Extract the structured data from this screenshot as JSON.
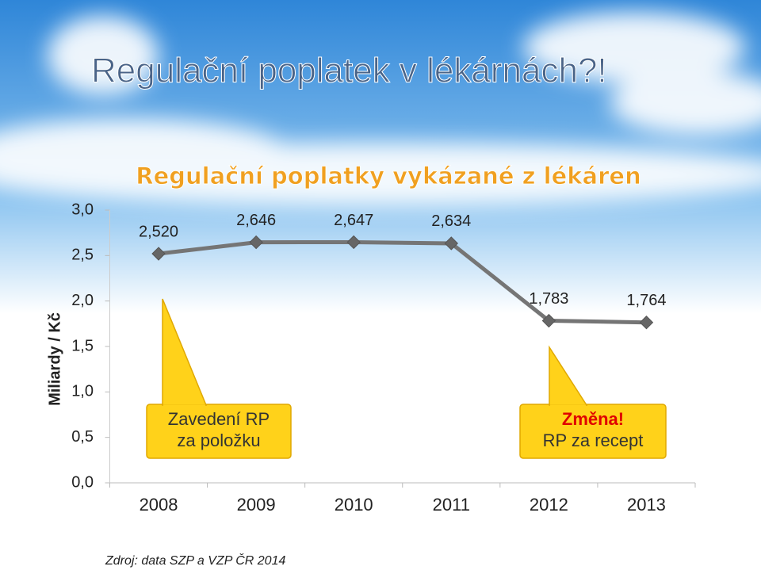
{
  "slide_title": "Regulační poplatek v lékárnách?!",
  "source": "Zdroj: data SZP a VZP ČR 2014",
  "chart_data": {
    "type": "line",
    "title": "Regulační poplatky vykázané z lékáren",
    "y_label": "Miliardy / Kč",
    "categories": [
      "2008",
      "2009",
      "2010",
      "2011",
      "2012",
      "2013"
    ],
    "values": [
      2.52,
      2.646,
      2.647,
      2.634,
      1.783,
      1.764
    ],
    "value_labels": [
      "2,520",
      "2,646",
      "2,647",
      "2,634",
      "1,783",
      "1,764"
    ],
    "color": "#757575",
    "ylim": [
      0,
      3
    ],
    "yticks": [
      {
        "value": 0,
        "label": "0,0"
      },
      {
        "value": 0.5,
        "label": "0,5"
      },
      {
        "value": 1,
        "label": "1,0"
      },
      {
        "value": 1.5,
        "label": "1,5"
      },
      {
        "value": 2,
        "label": "2,0"
      },
      {
        "value": 2.5,
        "label": "2,5"
      },
      {
        "value": 3,
        "label": "3,0"
      }
    ],
    "grid": false,
    "annotations": [
      {
        "lines": [
          "Zavedení RP",
          "za položku"
        ]
      },
      {
        "lines": [
          "Změna!",
          "RP za recept"
        ]
      }
    ]
  }
}
